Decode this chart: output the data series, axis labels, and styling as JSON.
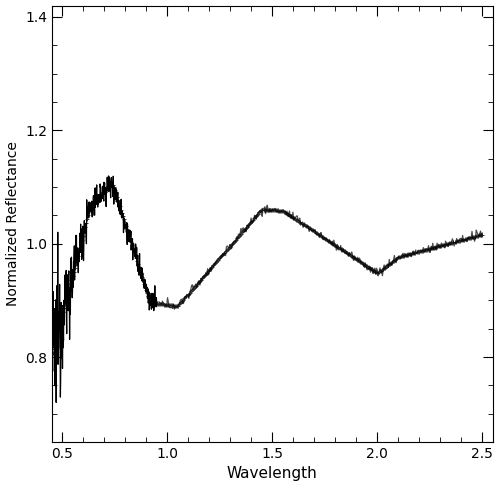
{
  "title": "",
  "xlabel": "Wavelength",
  "ylabel": "Normalized Reflectance",
  "xlim": [
    0.45,
    2.55
  ],
  "ylim": [
    0.65,
    1.42
  ],
  "xticks": [
    0.5,
    1.0,
    1.5,
    2.0,
    2.5
  ],
  "yticks": [
    0.8,
    1.0,
    1.2,
    1.4
  ],
  "gmos_color": "#000000",
  "oc_color": "#222222",
  "background": "#ffffff",
  "figsize": [
    5.0,
    4.87
  ],
  "dpi": 100
}
